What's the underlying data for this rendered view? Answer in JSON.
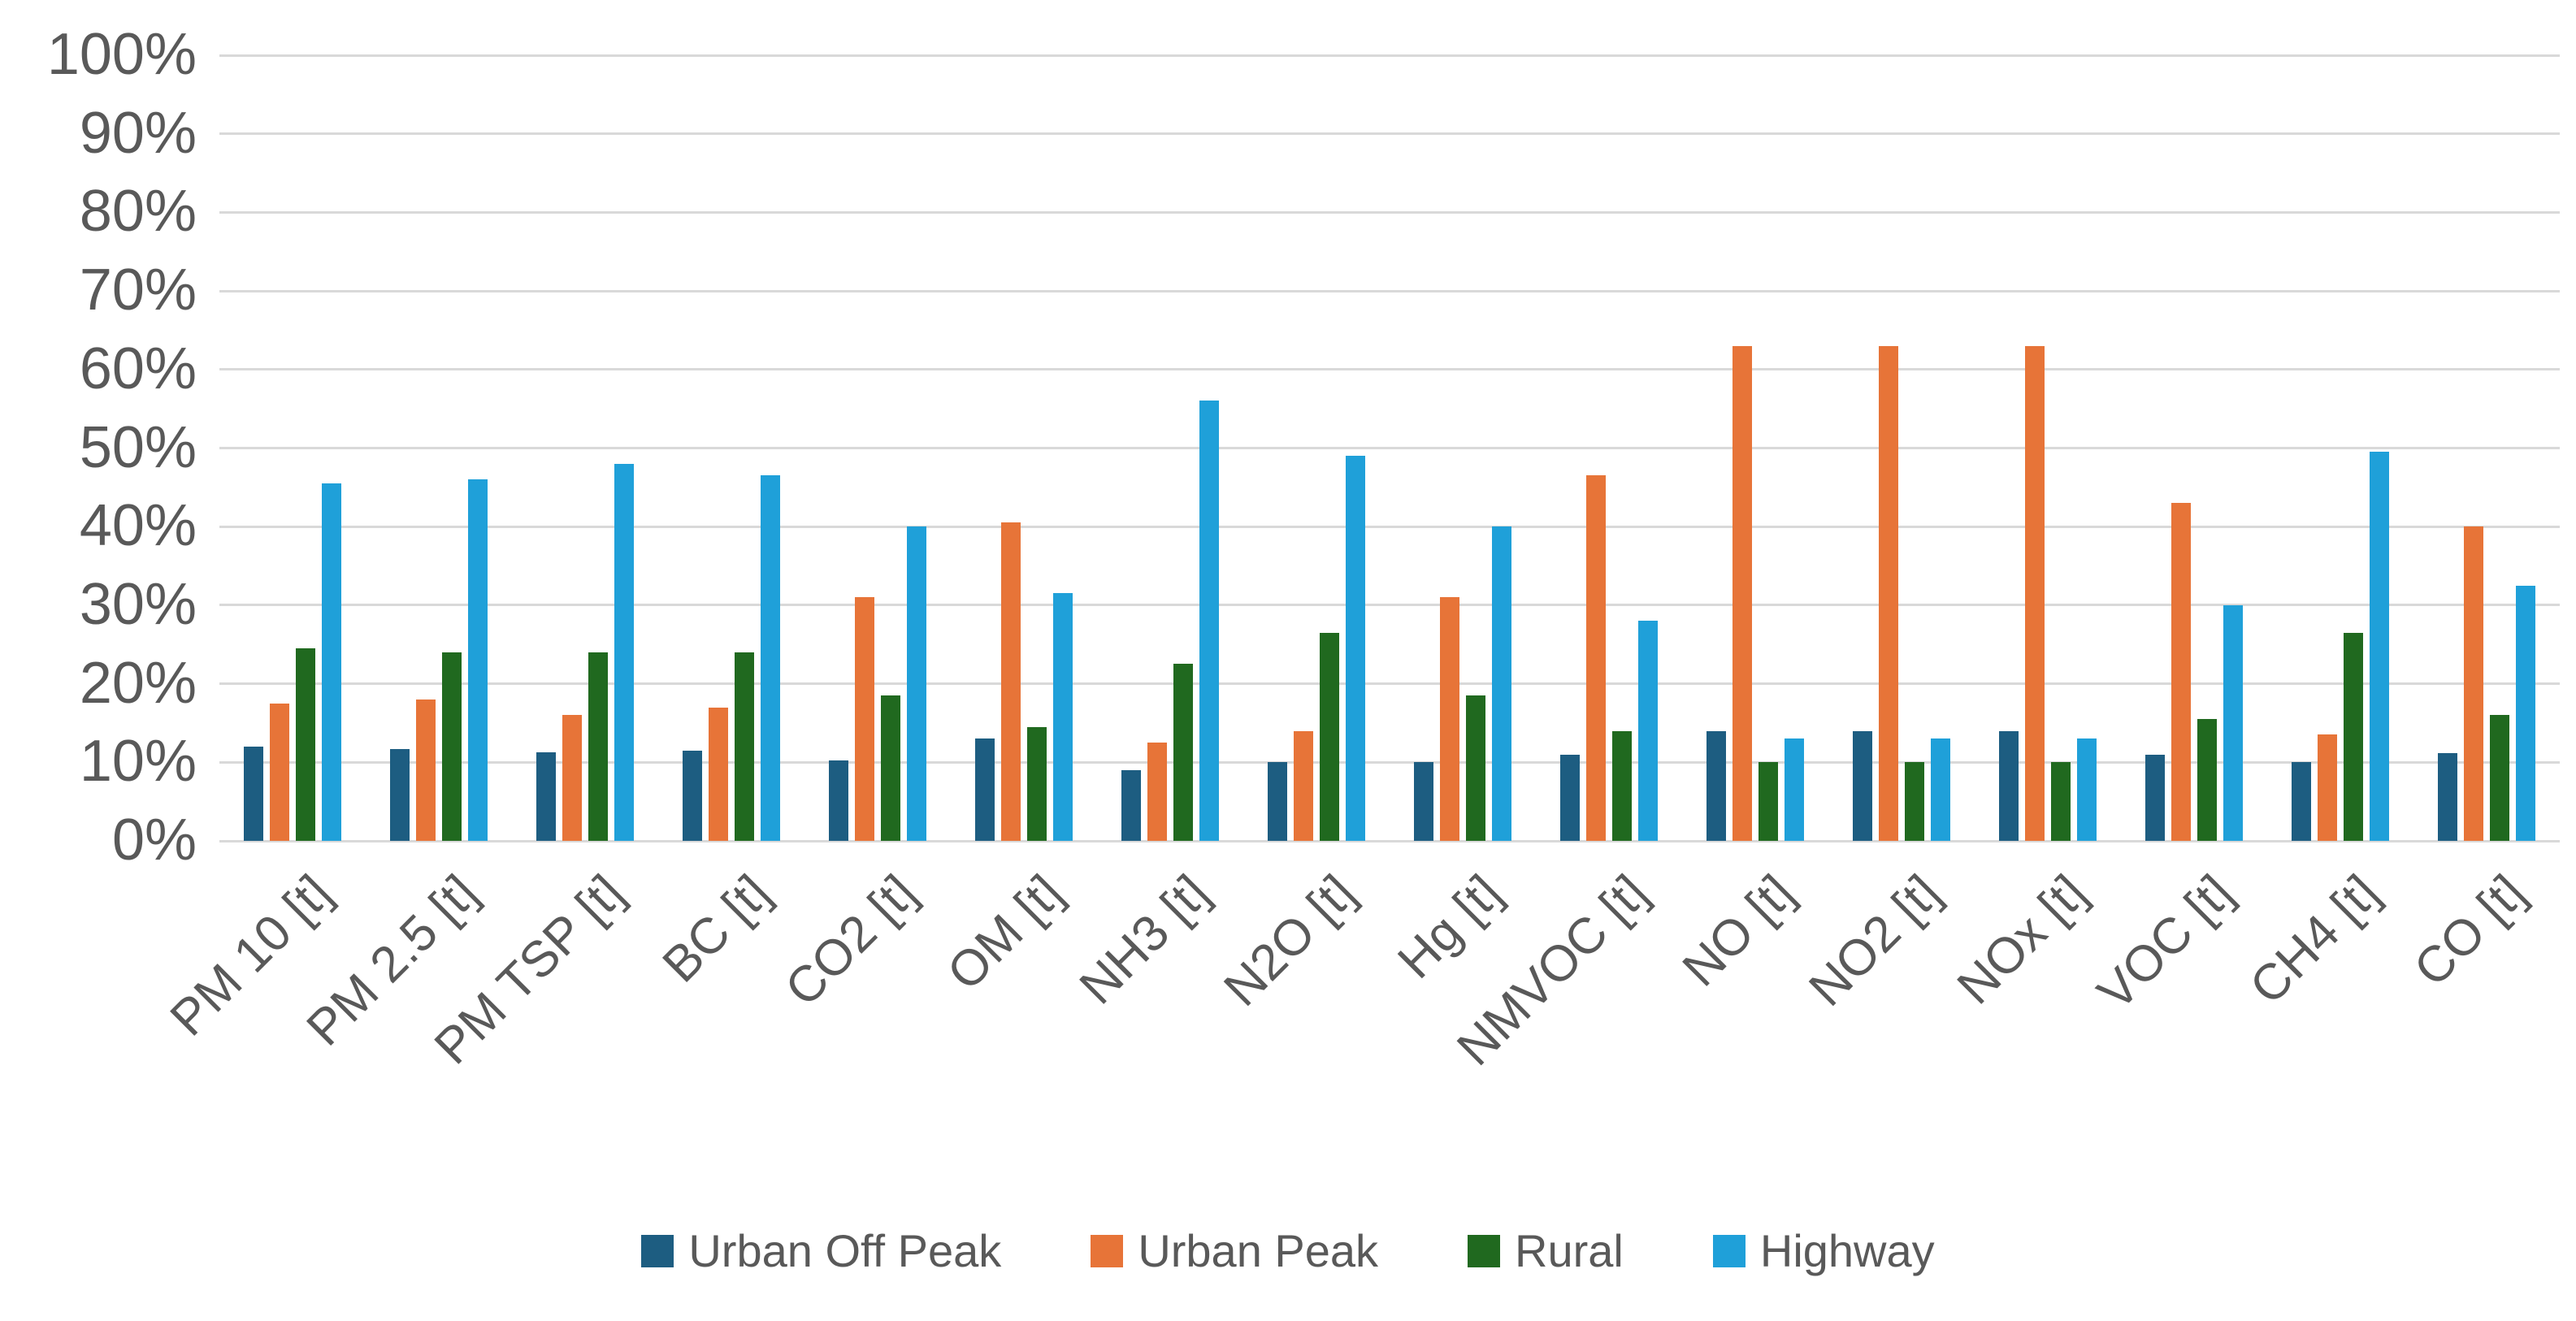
{
  "chart_data": {
    "type": "bar",
    "title": "",
    "xlabel": "",
    "ylabel": "",
    "categories": [
      "PM 10 [t]",
      "PM 2.5 [t]",
      "PM TSP [t]",
      "BC [t]",
      "CO2 [t]",
      "OM [t]",
      "NH3 [t]",
      "N2O [t]",
      "Hg [t]",
      "NMVOC [t]",
      "NO [t]",
      "NO2 [t]",
      "NOx [t]",
      "VOC [t]",
      "CH4 [t]",
      "CO [t]"
    ],
    "series": [
      {
        "name": "Urban Off Peak",
        "color": "#1d5d81",
        "values": [
          12,
          11.7,
          11.3,
          11.5,
          10.2,
          13,
          9,
          10,
          10,
          11,
          14,
          14,
          14,
          11,
          10,
          11.2
        ]
      },
      {
        "name": "Urban Peak",
        "color": "#e77438",
        "values": [
          17.5,
          18,
          16,
          17,
          31,
          40.5,
          12.5,
          14,
          31,
          46.5,
          63,
          63,
          63,
          43,
          13.5,
          40
        ]
      },
      {
        "name": "Rural",
        "color": "#20691f",
        "values": [
          24.5,
          24,
          24,
          24,
          18.5,
          14.5,
          22.5,
          26.5,
          18.5,
          14,
          10,
          10,
          10,
          15.5,
          26.5,
          16
        ]
      },
      {
        "name": "Highway",
        "color": "#1fa0d9",
        "values": [
          45.5,
          46,
          48,
          46.5,
          40,
          31.5,
          56,
          49,
          40,
          28,
          13,
          13,
          13,
          30,
          49.5,
          32.5
        ]
      }
    ],
    "ylim": [
      0,
      100
    ],
    "ytick_step": 10,
    "ytick_labels": [
      "0%",
      "10%",
      "20%",
      "30%",
      "40%",
      "50%",
      "60%",
      "70%",
      "80%",
      "90%",
      "100%"
    ],
    "grid": true,
    "legend_position": "bottom"
  },
  "colors": {
    "background": "#ffffff",
    "gridline": "#d9d9d9",
    "axis_label": "#595959"
  }
}
